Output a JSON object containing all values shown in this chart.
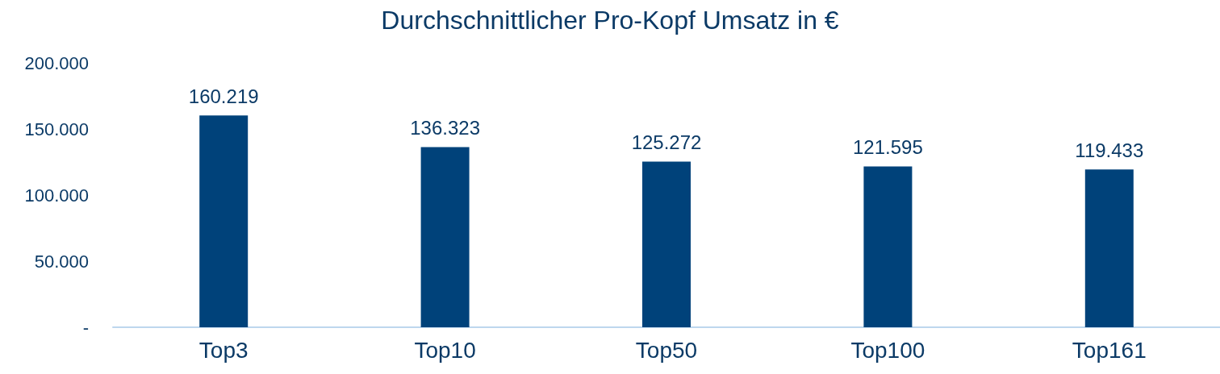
{
  "chart_data": {
    "type": "bar",
    "title": "Durchschnittlicher Pro-Kopf Umsatz in €",
    "categories": [
      "Top3",
      "Top10",
      "Top50",
      "Top100",
      "Top161"
    ],
    "values": [
      160219,
      136323,
      125272,
      121595,
      119433
    ],
    "value_labels": [
      "160.219",
      "136.323",
      "125.272",
      "121.595",
      "119.433"
    ],
    "color": "#00427a",
    "ylim": [
      0,
      200000
    ],
    "yticks": [
      {
        "value": 0,
        "label": "-"
      },
      {
        "value": 50000,
        "label": "50.000"
      },
      {
        "value": 100000,
        "label": "100.000"
      },
      {
        "value": 150000,
        "label": "150.000"
      },
      {
        "value": 200000,
        "label": "200.000"
      }
    ],
    "grid": false
  }
}
